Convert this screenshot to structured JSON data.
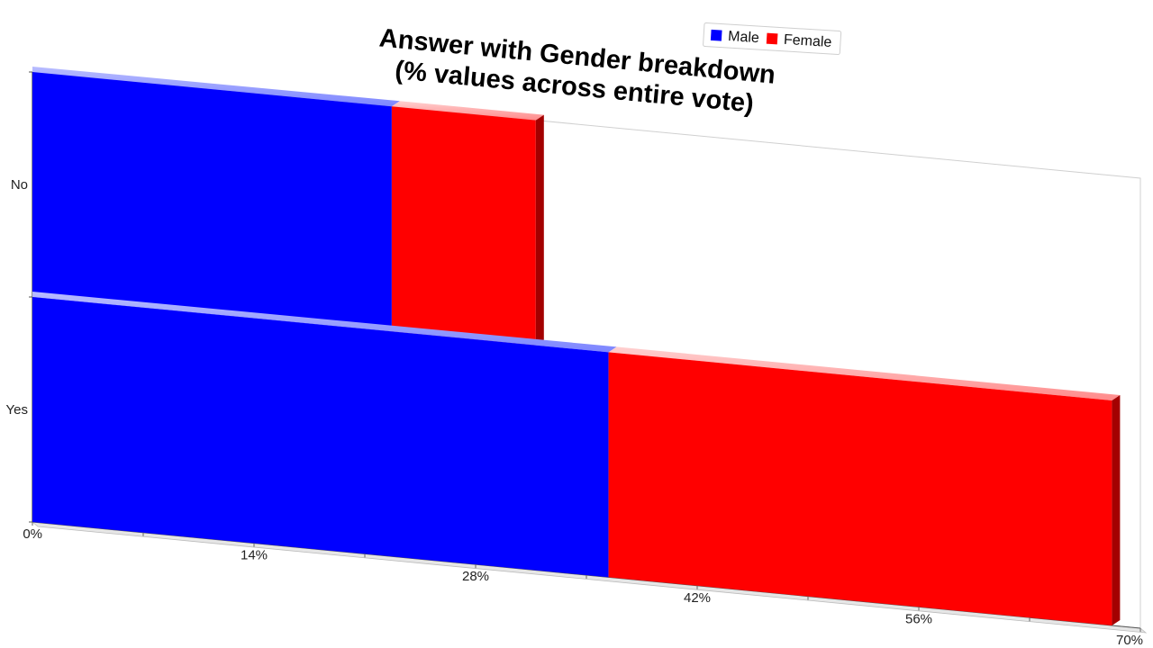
{
  "chart_data": {
    "type": "bar",
    "orientation": "horizontal",
    "stacked": true,
    "title": "Answer with Gender breakdown\n(% values across entire vote)",
    "categories": [
      "No",
      "Yes"
    ],
    "series": [
      {
        "name": "Male",
        "values": [
          22.7,
          36.4
        ],
        "color": "#0000ff"
      },
      {
        "name": "Female",
        "values": [
          9.1,
          31.8
        ],
        "color": "#ff0000"
      }
    ],
    "x_ticks": [
      "0%",
      "14%",
      "28%",
      "42%",
      "56%",
      "70%"
    ],
    "xlim": [
      0,
      70
    ],
    "xlabel": "",
    "ylabel": "",
    "legend_position": "top-right",
    "grid": false,
    "style": "3d-perspective"
  }
}
